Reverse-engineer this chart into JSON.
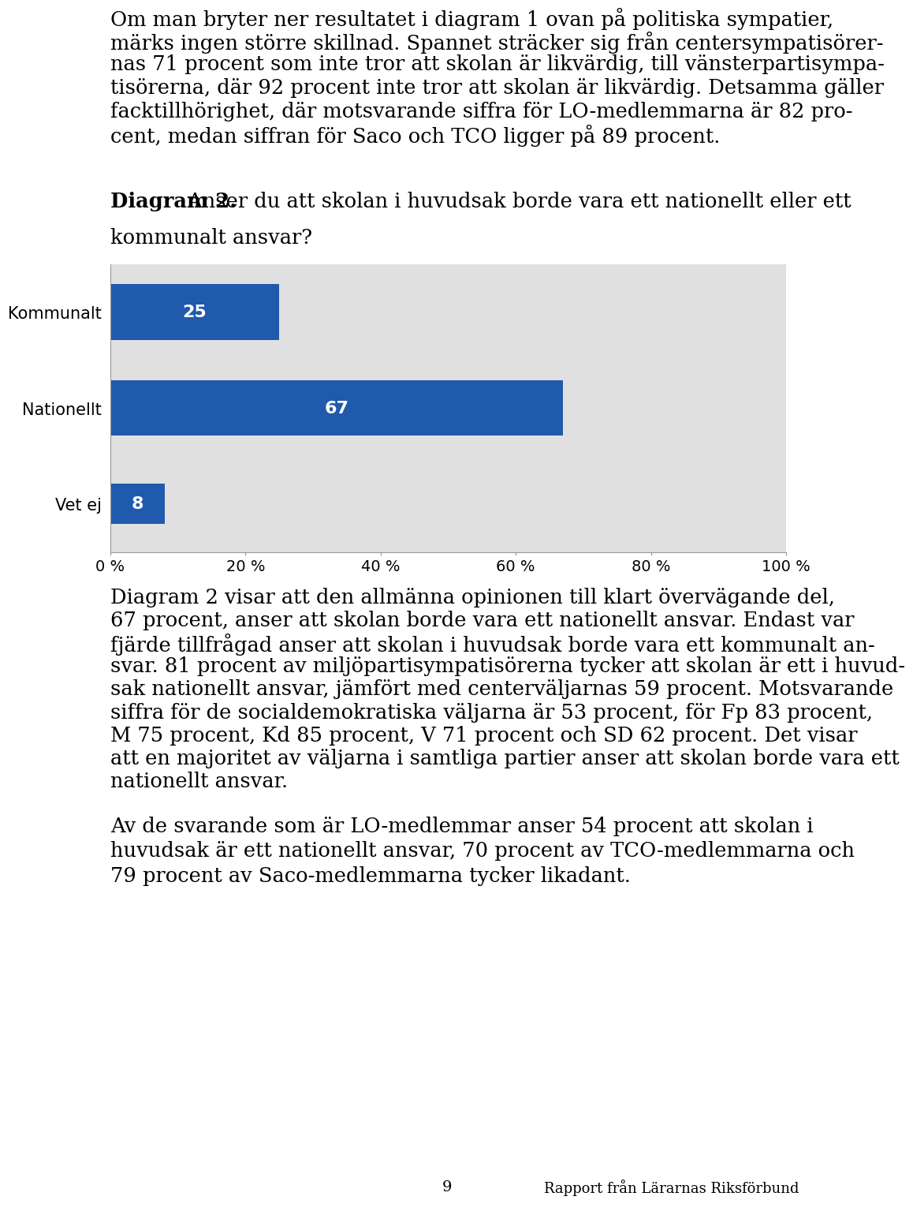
{
  "page_bg": "#ffffff",
  "chart_bg": "#e0e0e0",
  "bar_color": "#1f5aad",
  "categories": [
    "Kommunalt",
    "Nationellt",
    "Vet ej"
  ],
  "values": [
    25,
    67,
    8
  ],
  "xlim": [
    0,
    100
  ],
  "xtick_labels": [
    "0 %",
    "20 %",
    "40 %",
    "60 %",
    "80 %",
    "100 %"
  ],
  "xtick_values": [
    0,
    20,
    40,
    60,
    80,
    100
  ],
  "bar_label_fontsize": 16,
  "ytick_fontsize": 15,
  "xtick_fontsize": 14,
  "text_top_lines": [
    "Om man bryter ner resultatet i diagram 1 ovan på politiska sympatier,",
    "märks ingen större skillnad. Spannet sträcker sig från centersympatisörer-",
    "nas 71 procent som inte tror att skolan är likvärdig, till vänsterpartisympa-",
    "tisörerna, där 92 procent inte tror att skolan är likvärdig. Detsamma gäller",
    "facktillhörighet, där motsvarande siffra för LO-medlemmarna är 82 pro-",
    "cent, medan siffran för Saco och TCO ligger på 89 procent."
  ],
  "diagram_label_bold": "Diagram 2.",
  "diagram_label_rest": " Anser du att skolan i huvudsak borde vara ett nationellt eller ett",
  "diagram_label_rest2": "kommunalt ansvar?",
  "text_bottom_lines": [
    "Diagram 2 visar att den allmänna opinionen till klart övervägande del,",
    "67 procent, anser att skolan borde vara ett nationellt ansvar. Endast var",
    "fjärde tillfrågad anser att skolan i huvudsak borde vara ett kommunalt an-",
    "svar. 81 procent av miljöpartisympatisörerna tycker att skolan är ett i huvud-",
    "sak nationellt ansvar, jämfört med centerväljarnas 59 procent. Motsvarande",
    "siffra för de socialdemokratiska väljarna är 53 procent, för Fp 83 procent,",
    "M 75 procent, Kd 85 procent, V 71 procent och SD 62 procent. Det visar",
    "att en majoritet av väljarna i samtliga partier anser att skolan borde vara ett",
    "nationellt ansvar."
  ],
  "text_bottom2_lines": [
    "Av de svarande som är LO-medlemmar anser 54 procent att skolan i",
    "huvudsak är ett nationellt ansvar, 70 procent av TCO-medlemmarna och",
    "79 procent av Saco-medlemmarna tycker likadant."
  ],
  "footer_page": "9",
  "footer_right": "Rapport från Lärarnas Riksförbund",
  "text_fontsize": 18.5,
  "text_linespacing": 28
}
